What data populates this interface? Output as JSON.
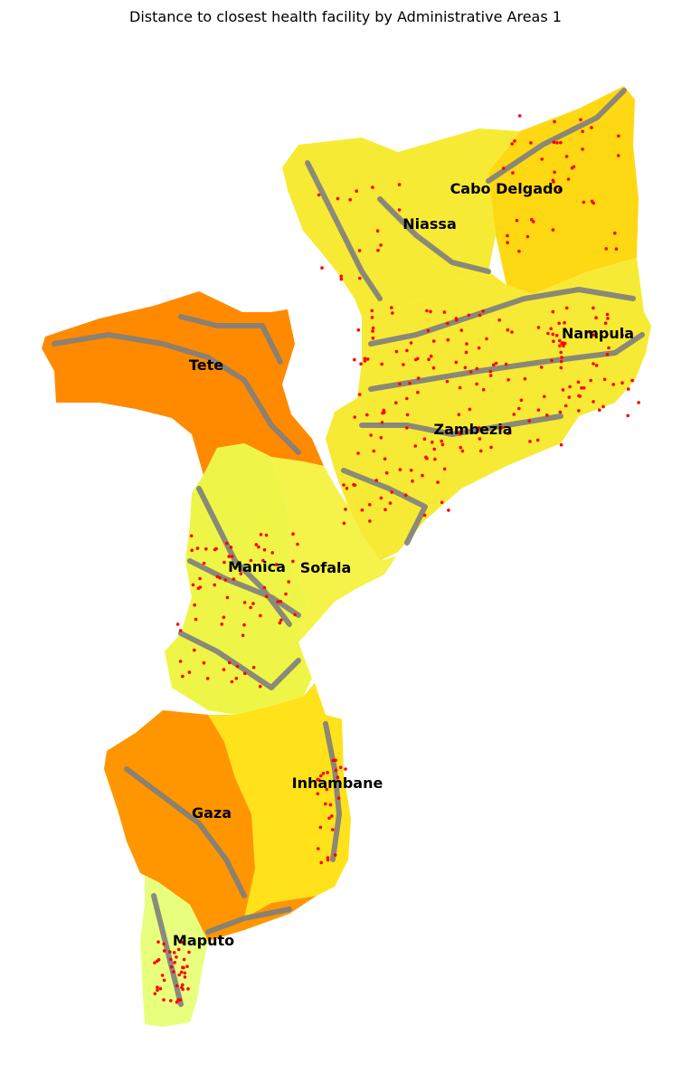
{
  "title": "Distance to closest health facility by Administrative Areas 1",
  "colors": {
    "roads": "#7f7f7f",
    "facilities": "#ff0000"
  },
  "regions": [
    {
      "id": "cabo-delgado",
      "name": "Cabo Delgado",
      "fill": "#ffd814"
    },
    {
      "id": "niassa",
      "name": "Niassa",
      "fill": "#f7ea34"
    },
    {
      "id": "nampula",
      "name": "Nampula",
      "fill": "#f7ea34"
    },
    {
      "id": "zambezia",
      "name": "Zambezia",
      "fill": "#f7ea34"
    },
    {
      "id": "tete",
      "name": "Tete",
      "fill": "#ff8a00"
    },
    {
      "id": "manica",
      "name": "Manica",
      "fill": "#eef547"
    },
    {
      "id": "sofala",
      "name": "Sofala",
      "fill": "#f5f24a"
    },
    {
      "id": "inhambane",
      "name": "Inhambane",
      "fill": "#ffe21a"
    },
    {
      "id": "gaza",
      "name": "Gaza",
      "fill": "#ff9600"
    },
    {
      "id": "maputo",
      "name": "Maputo",
      "fill": "#e8ff7d"
    }
  ]
}
